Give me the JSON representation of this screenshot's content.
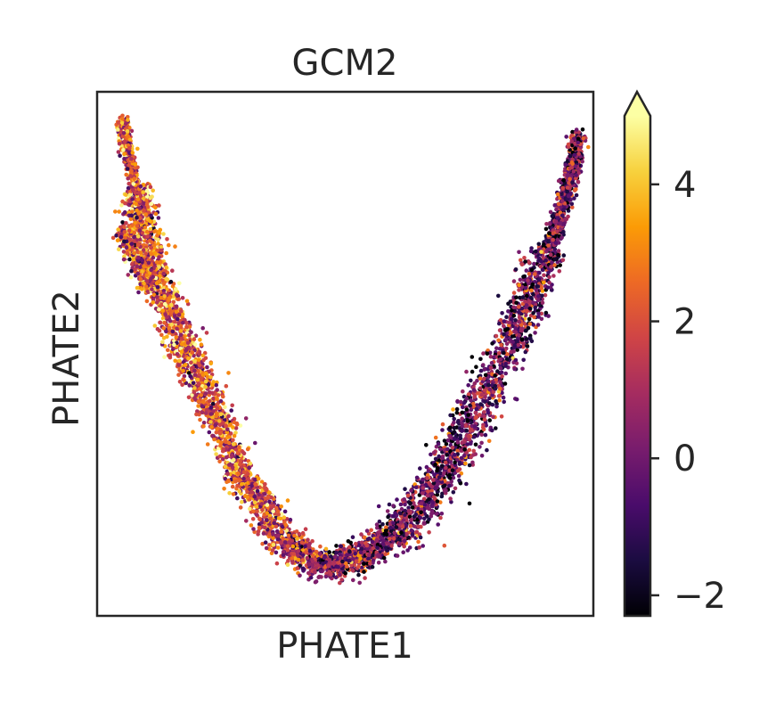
{
  "chart_data": {
    "type": "scatter",
    "title": "GCM2",
    "xlabel": "PHATE1",
    "ylabel": "PHATE2",
    "x_ticks_shown": false,
    "y_ticks_shown": false,
    "grid": false,
    "point_count_estimate": 6000,
    "manifold": {
      "description_units": "normalized axis units (0 = left/bottom edge, 1 = right/top edge)",
      "centerline": [
        [
          0.05,
          0.95
        ],
        [
          0.07,
          0.85
        ],
        [
          0.09,
          0.75
        ],
        [
          0.13,
          0.62
        ],
        [
          0.18,
          0.5
        ],
        [
          0.24,
          0.38
        ],
        [
          0.3,
          0.25
        ],
        [
          0.38,
          0.14
        ],
        [
          0.46,
          0.09
        ],
        [
          0.55,
          0.12
        ],
        [
          0.63,
          0.18
        ],
        [
          0.71,
          0.29
        ],
        [
          0.78,
          0.42
        ],
        [
          0.85,
          0.56
        ],
        [
          0.91,
          0.69
        ],
        [
          0.95,
          0.82
        ],
        [
          0.97,
          0.92
        ]
      ],
      "branch": [
        [
          0.05,
          0.74
        ],
        [
          0.08,
          0.69
        ],
        [
          0.11,
          0.62
        ]
      ]
    },
    "color_encoding": {
      "variable": "GCM2 expression",
      "left_branch_mean": 2.2,
      "right_branch_mean": -0.2,
      "spread": 1.6
    },
    "colorbar": {
      "cmap": "inferno",
      "vmin": -2.3,
      "vmax": 5,
      "extend": "max",
      "ticks": [
        -2,
        0,
        2,
        4
      ],
      "tick_labels": [
        "−2",
        "0",
        "2",
        "4"
      ],
      "colors": [
        "#000004",
        "#1b0c41",
        "#4a0c6b",
        "#781c6d",
        "#a52c60",
        "#cf4446",
        "#ed6925",
        "#fb9b06",
        "#f7d13d",
        "#fcffa4"
      ]
    }
  }
}
